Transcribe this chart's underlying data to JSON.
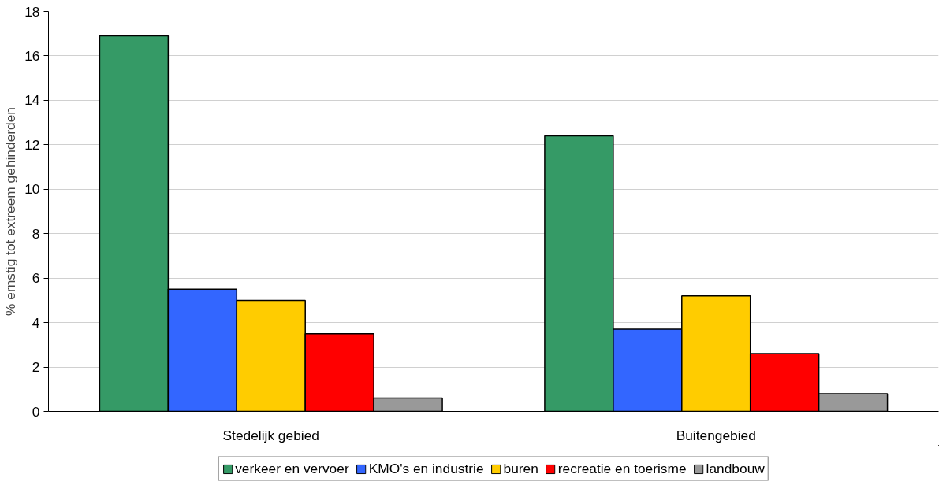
{
  "chart_data": {
    "type": "bar",
    "ylabel": "% ernstig tot extreem gehinderden",
    "categories": [
      "Stedelijk gebied",
      "Buitengebied"
    ],
    "series": [
      {
        "name": "verkeer en vervoer",
        "color": "#359a66",
        "values": [
          16.9,
          12.4
        ]
      },
      {
        "name": "KMO's en industrie",
        "color": "#3366ff",
        "values": [
          5.5,
          3.7
        ]
      },
      {
        "name": "buren",
        "color": "#ffcc00",
        "values": [
          5.0,
          5.2
        ]
      },
      {
        "name": "recreatie en toerisme",
        "color": "#ff0000",
        "values": [
          3.5,
          2.6
        ]
      },
      {
        "name": "landbouw",
        "color": "#999999",
        "values": [
          0.6,
          0.8
        ]
      }
    ],
    "ylim": [
      0,
      18
    ],
    "yticks": [
      0,
      2,
      4,
      6,
      8,
      10,
      12,
      14,
      16,
      18
    ],
    "grid": "y",
    "legend": "bottom"
  }
}
